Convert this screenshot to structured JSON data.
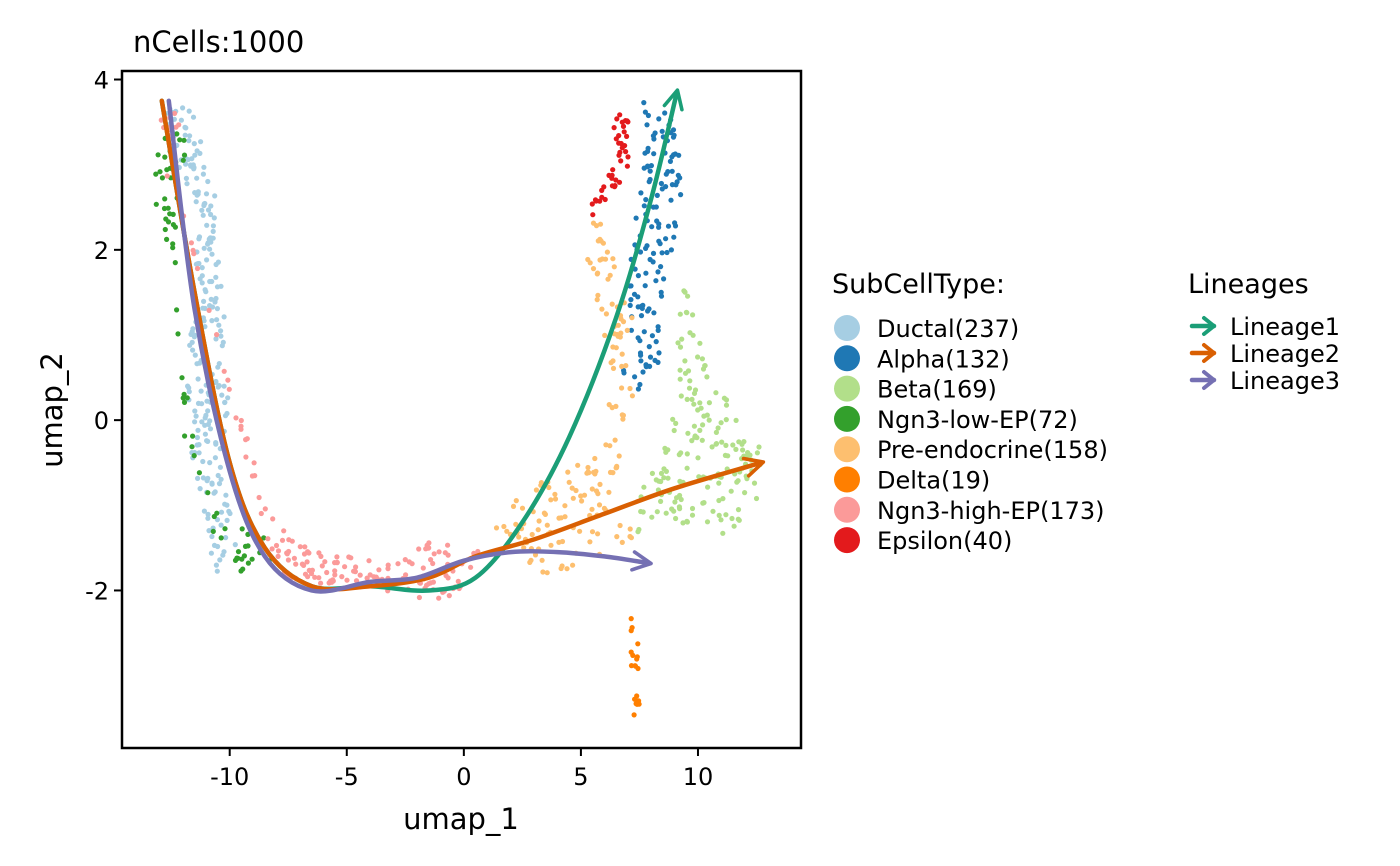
{
  "chart_data": {
    "type": "scatter",
    "title": "nCells:1000",
    "xlabel": "umap_1",
    "ylabel": "umap_2",
    "xlim": [
      -14.6,
      14.4
    ],
    "ylim": [
      -3.85,
      4.1
    ],
    "xticks": [
      -10,
      -5,
      0,
      5,
      10
    ],
    "xtick_labels": [
      "-10",
      "-5",
      "0",
      "5",
      "10"
    ],
    "yticks": [
      -2,
      0,
      2,
      4
    ],
    "ytick_labels": [
      "-2",
      "0",
      "2",
      "4"
    ],
    "grid": false,
    "legend_position": "right",
    "legends": [
      {
        "title": "SubCellType:",
        "entries": [
          {
            "label": "Ductal(237)",
            "color": "#a6cee3"
          },
          {
            "label": "Alpha(132)",
            "color": "#1f78b4"
          },
          {
            "label": "Beta(169)",
            "color": "#b2df8a"
          },
          {
            "label": "Ngn3-low-EP(72)",
            "color": "#33a02c"
          },
          {
            "label": "Pre-endocrine(158)",
            "color": "#fdbf6f"
          },
          {
            "label": "Delta(19)",
            "color": "#ff7f00"
          },
          {
            "label": "Ngn3-high-EP(173)",
            "color": "#fb9a99"
          },
          {
            "label": "Epsilon(40)",
            "color": "#e31a1c"
          }
        ]
      },
      {
        "title": "Lineages",
        "entries": [
          {
            "label": "Lineage1",
            "color": "#1b9e77"
          },
          {
            "label": "Lineage2",
            "color": "#d95f02"
          },
          {
            "label": "Lineage3",
            "color": "#7570b3"
          }
        ]
      }
    ],
    "cluster_shapes": [
      {
        "name": "Ductal(237)",
        "color": "#a6cee3",
        "count": 237,
        "path": [
          [
            -12.7,
            3.75
          ],
          [
            -12.5,
            3.1
          ],
          [
            -11.5,
            2.6
          ],
          [
            -11.4,
            1.6
          ],
          [
            -11.9,
            0.7
          ],
          [
            -11.7,
            -0.3
          ],
          [
            -11.2,
            -0.9
          ],
          [
            -10.9,
            -1.5
          ],
          [
            -10.5,
            -1.8
          ],
          [
            -9.5,
            -1.4
          ],
          [
            -10.3,
            -0.7
          ],
          [
            -10.0,
            0.3
          ],
          [
            -10.3,
            1.6
          ],
          [
            -10.6,
            2.6
          ],
          [
            -11.1,
            3.3
          ],
          [
            -11.7,
            3.7
          ]
        ]
      },
      {
        "name": "Alpha(132)",
        "color": "#1f78b4",
        "count": 132,
        "path": [
          [
            7.6,
            3.75
          ],
          [
            9.1,
            3.55
          ],
          [
            9.3,
            2.6
          ],
          [
            8.7,
            1.7
          ],
          [
            8.4,
            0.7
          ],
          [
            7.3,
            0.2
          ],
          [
            6.6,
            0.45
          ],
          [
            6.9,
            1.3
          ],
          [
            7.1,
            2.1
          ],
          [
            7.6,
            2.8
          ]
        ]
      },
      {
        "name": "Beta(169)",
        "color": "#b2df8a",
        "count": 169,
        "path": [
          [
            9.3,
            1.9
          ],
          [
            10.6,
            0.4
          ],
          [
            11.3,
            0.25
          ],
          [
            12.7,
            -0.3
          ],
          [
            12.6,
            -1.05
          ],
          [
            11.2,
            -1.35
          ],
          [
            9.8,
            -1.25
          ],
          [
            8.2,
            -1.1
          ],
          [
            7.4,
            -1.35
          ],
          [
            7.5,
            -0.9
          ],
          [
            8.3,
            -0.4
          ],
          [
            9.0,
            0.1
          ]
        ]
      },
      {
        "name": "Ngn3-low-EP(72)",
        "color": "#33a02c",
        "count": 72,
        "path": [
          [
            -13.1,
            3.7
          ],
          [
            -12.5,
            3.4
          ],
          [
            -11.8,
            3.3
          ],
          [
            -12.2,
            2.4
          ],
          [
            -12.3,
            1.2
          ],
          [
            -11.9,
            -0.5
          ],
          [
            -11.0,
            -0.8
          ],
          [
            -10.3,
            -1.2
          ],
          [
            -9.4,
            -1.1
          ],
          [
            -8.6,
            -1.3
          ],
          [
            -8.1,
            -1.6
          ],
          [
            -8.8,
            -1.95
          ],
          [
            -9.9,
            -1.7
          ],
          [
            -10.8,
            -1.3
          ],
          [
            -11.5,
            -0.2
          ],
          [
            -12.3,
            1.5
          ],
          [
            -13.2,
            2.6
          ]
        ]
      },
      {
        "name": "Pre-endocrine(158)",
        "color": "#fdbf6f",
        "count": 158,
        "path": [
          [
            5.0,
            2.25
          ],
          [
            5.4,
            2.55
          ],
          [
            6.2,
            2.1
          ],
          [
            7.1,
            1.55
          ],
          [
            7.5,
            0.8
          ],
          [
            7.3,
            0.2
          ],
          [
            6.4,
            -0.2
          ],
          [
            5.6,
            -0.4
          ],
          [
            4.2,
            -0.55
          ],
          [
            2.2,
            -0.95
          ],
          [
            0.6,
            -1.2
          ],
          [
            1.6,
            -1.4
          ],
          [
            3.5,
            -1.85
          ],
          [
            5.7,
            -1.6
          ],
          [
            7.3,
            -1.4
          ],
          [
            6.9,
            -0.7
          ],
          [
            6.1,
            0.3
          ],
          [
            5.9,
            1.2
          ],
          [
            5.1,
            1.9
          ]
        ]
      },
      {
        "name": "Delta(19)",
        "color": "#ff7f00",
        "count": 19,
        "path": [
          [
            7.1,
            -2.2
          ],
          [
            7.4,
            -2.2
          ],
          [
            7.5,
            -3.5
          ],
          [
            7.2,
            -3.5
          ]
        ]
      },
      {
        "name": "Ngn3-high-EP(173)",
        "color": "#fb9a99",
        "count": 173,
        "path": [
          [
            -13.2,
            3.8
          ],
          [
            -12.5,
            3.8
          ],
          [
            -12.1,
            3.55
          ],
          [
            -12.6,
            2.7
          ],
          [
            -12.9,
            3.2
          ],
          [
            -8.3,
            -1.1
          ],
          [
            -7.2,
            -1.45
          ],
          [
            -5.2,
            -1.6
          ],
          [
            -3.0,
            -1.65
          ],
          [
            -1.2,
            -1.4
          ],
          [
            0.8,
            -1.55
          ],
          [
            0.2,
            -1.85
          ],
          [
            -0.3,
            -2.2
          ],
          [
            -2.4,
            -2.05
          ],
          [
            -5.0,
            -1.95
          ],
          [
            -7.6,
            -1.9
          ],
          [
            -8.4,
            -1.45
          ]
        ]
      },
      {
        "name": "Epsilon(40)",
        "color": "#e31a1c",
        "count": 40,
        "path": [
          [
            6.3,
            3.6
          ],
          [
            7.0,
            3.6
          ],
          [
            7.1,
            3.0
          ],
          [
            6.6,
            2.75
          ],
          [
            6.1,
            2.55
          ],
          [
            5.3,
            2.35
          ],
          [
            5.5,
            2.6
          ],
          [
            6.1,
            2.85
          ],
          [
            6.5,
            3.1
          ]
        ]
      }
    ],
    "lines": [
      {
        "name": "Lineage1",
        "color": "#1b9e77",
        "x": [
          -12.9,
          -11.5,
          -10.0,
          -8.5,
          -6.5,
          -4.0,
          -1.5,
          0.5,
          2.5,
          4.5,
          6.5,
          8.0,
          9.1
        ],
        "y": [
          3.75,
          1.5,
          -0.5,
          -1.5,
          -1.95,
          -1.95,
          -2.0,
          -1.85,
          -1.2,
          -0.2,
          1.2,
          2.6,
          3.85
        ]
      },
      {
        "name": "Lineage2",
        "color": "#d95f02",
        "x": [
          -12.9,
          -11.5,
          -10.0,
          -8.5,
          -6.5,
          -4.0,
          -1.5,
          0.5,
          3.0,
          6.0,
          9.0,
          12.7
        ],
        "y": [
          3.75,
          1.5,
          -0.5,
          -1.5,
          -1.95,
          -1.95,
          -1.85,
          -1.6,
          -1.4,
          -1.1,
          -0.8,
          -0.5
        ]
      },
      {
        "name": "Lineage3",
        "color": "#7570b3",
        "x": [
          -12.6,
          -11.5,
          -10.0,
          -8.5,
          -6.5,
          -4.0,
          -2.0,
          0.0,
          2.0,
          4.0,
          6.0,
          7.9
        ],
        "y": [
          3.75,
          1.3,
          -0.6,
          -1.6,
          -2.0,
          -1.9,
          -1.85,
          -1.65,
          -1.55,
          -1.55,
          -1.6,
          -1.68
        ]
      }
    ]
  }
}
